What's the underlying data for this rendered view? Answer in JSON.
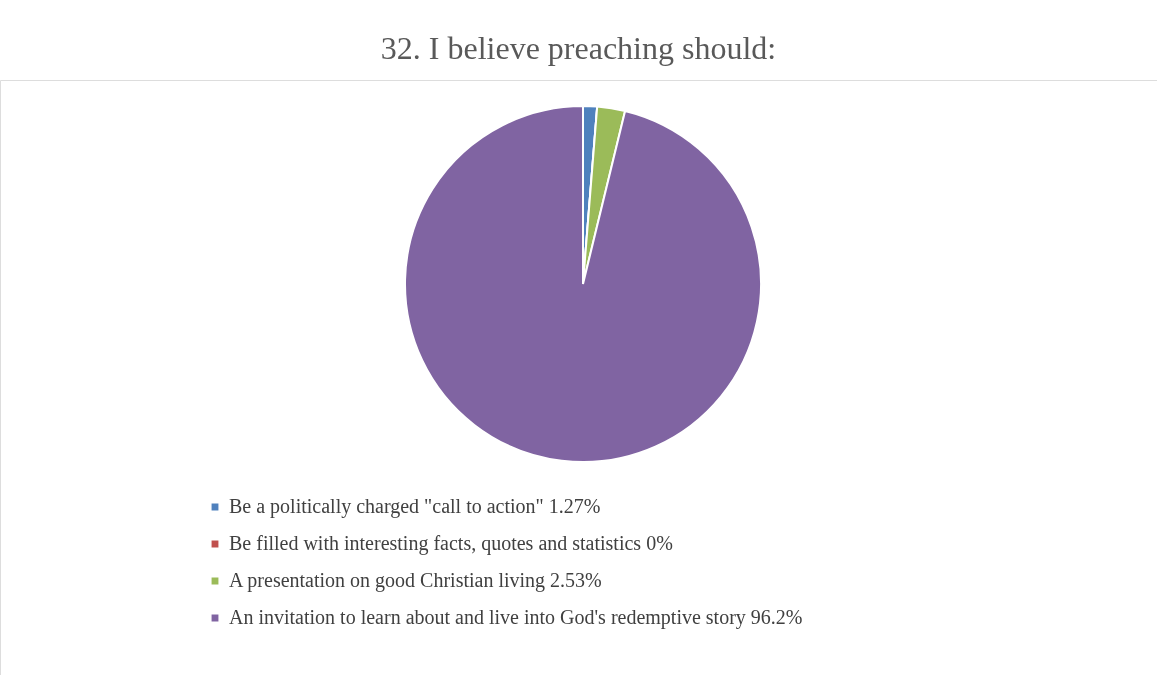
{
  "chart_data": {
    "type": "pie",
    "title": "32. I believe preaching should:",
    "categories": [
      "Be a politically charged \"call to action\"",
      "Be filled with interesting facts, quotes and statistics",
      "A presentation on good Christian living",
      "An invitation to learn about and live into God's redemptive story"
    ],
    "values": [
      1.27,
      0,
      2.53,
      96.2
    ],
    "value_labels": [
      "1.27%",
      "0%",
      "2.53%",
      "96.2%"
    ],
    "colors": [
      "#4f81bd",
      "#c0504d",
      "#9bbb59",
      "#8064a2"
    ],
    "legend": "bottom"
  }
}
